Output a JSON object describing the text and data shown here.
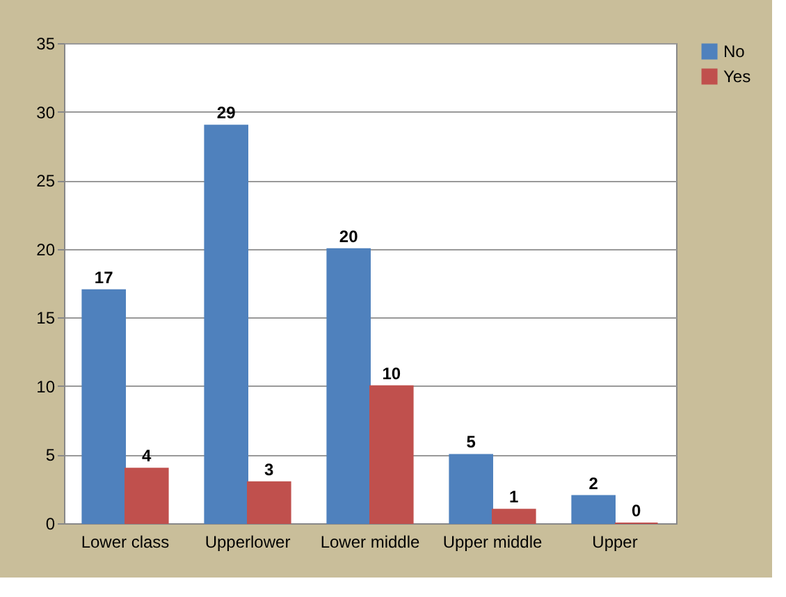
{
  "chart_data": {
    "type": "bar",
    "categories": [
      "Lower class",
      "Upperlower",
      "Lower middle",
      "Upper middle",
      "Upper"
    ],
    "series": [
      {
        "name": "No",
        "color": "#4f81bd",
        "values": [
          17,
          29,
          20,
          5,
          2
        ]
      },
      {
        "name": "Yes",
        "color": "#c0504d",
        "values": [
          4,
          3,
          10,
          1,
          0
        ]
      }
    ],
    "ylim": [
      0,
      35
    ],
    "yticks": [
      0,
      5,
      10,
      15,
      20,
      25,
      30,
      35
    ],
    "grid": "y",
    "legend": "right",
    "data_labels": true
  }
}
